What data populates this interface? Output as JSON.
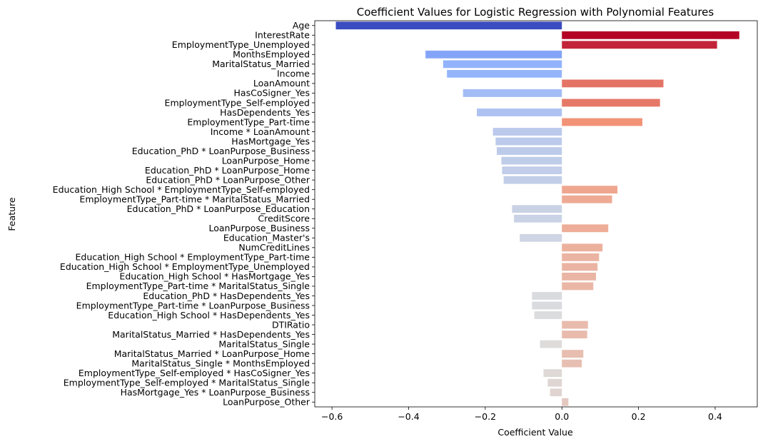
{
  "chart_data": {
    "type": "bar",
    "orientation": "horizontal",
    "title": "Coefficient Values for Logistic Regression with Polynomial Features",
    "xlabel": "Coefficient Value",
    "ylabel": "Feature",
    "xlim": [
      -0.645,
      0.51
    ],
    "xticks": [
      -0.6,
      -0.4,
      -0.2,
      0.0,
      0.2,
      0.4
    ],
    "xtick_labels": [
      "−0.6",
      "−0.4",
      "−0.2",
      "0.0",
      "0.2",
      "0.4"
    ],
    "grid": false,
    "palette": "coolwarm",
    "categories": [
      "Age",
      "InterestRate",
      "EmploymentType_Unemployed",
      "MonthsEmployed",
      "MaritalStatus_Married",
      "Income",
      "LoanAmount",
      "HasCoSigner_Yes",
      "EmploymentType_Self-employed",
      "HasDependents_Yes",
      "EmploymentType_Part-time",
      "Income * LoanAmount",
      "HasMortgage_Yes",
      "Education_PhD * LoanPurpose_Business",
      "LoanPurpose_Home",
      "Education_PhD * LoanPurpose_Home",
      "Education_PhD * LoanPurpose_Other",
      "Education_High School * EmploymentType_Self-employed",
      "EmploymentType_Part-time * MaritalStatus_Married",
      "Education_PhD * LoanPurpose_Education",
      "CreditScore",
      "LoanPurpose_Business",
      "Education_Master's",
      "NumCreditLines",
      "Education_High School * EmploymentType_Part-time",
      "Education_High School * EmploymentType_Unemployed",
      "Education_High School * HasMortgage_Yes",
      "EmploymentType_Part-time * MaritalStatus_Single",
      "Education_PhD * HasDependents_Yes",
      "EmploymentType_Part-time * LoanPurpose_Business",
      "Education_High School * HasDependents_Yes",
      "DTIRatio",
      "MaritalStatus_Married * HasDependents_Yes",
      "MaritalStatus_Single",
      "MaritalStatus_Married * LoanPurpose_Home",
      "MaritalStatus_Single * MonthsEmployed",
      "EmploymentType_Self-employed * HasCoSigner_Yes",
      "EmploymentType_Self-employed * MaritalStatus_Single",
      "HasMortgage_Yes * LoanPurpose_Business",
      "LoanPurpose_Other"
    ],
    "values": [
      -0.59,
      0.463,
      0.405,
      -0.356,
      -0.31,
      -0.3,
      0.265,
      -0.258,
      0.256,
      -0.222,
      0.21,
      -0.18,
      -0.173,
      -0.17,
      -0.158,
      -0.156,
      -0.152,
      0.145,
      0.131,
      -0.13,
      -0.125,
      0.121,
      -0.11,
      0.106,
      0.097,
      0.093,
      0.089,
      0.082,
      -0.078,
      -0.078,
      -0.072,
      0.068,
      0.066,
      -0.057,
      0.056,
      0.052,
      -0.048,
      -0.037,
      -0.031,
      0.017
    ]
  }
}
